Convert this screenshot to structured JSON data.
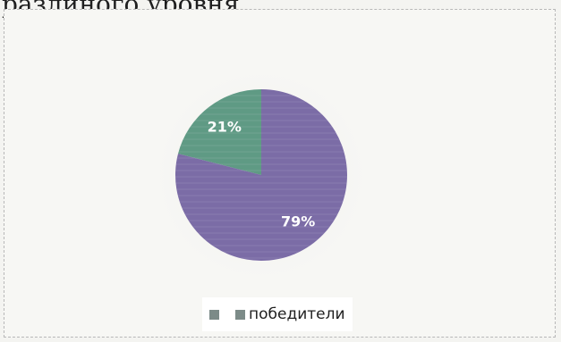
{
  "caption": "разлиного уровня.",
  "chart_data": {
    "type": "pie",
    "slices": [
      {
        "name": "",
        "value": 21,
        "label": "21%",
        "color": "#5f9a84"
      },
      {
        "name": "победители",
        "value": 79,
        "label": "79%",
        "color": "#7b6ca6"
      }
    ],
    "legend": {
      "position": "bottom"
    }
  }
}
